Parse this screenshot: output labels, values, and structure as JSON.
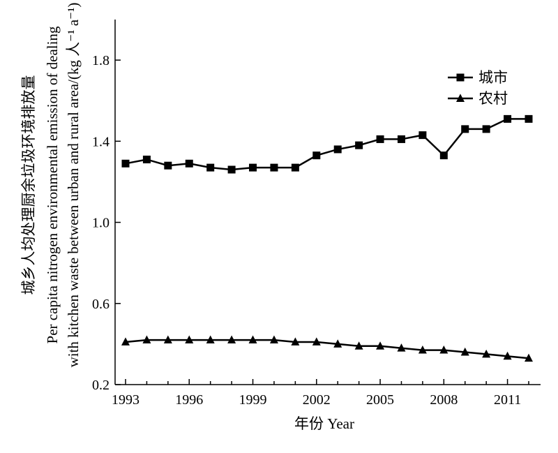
{
  "chart_data": {
    "type": "line",
    "title": "",
    "xlabel": "年份 Year",
    "ylabel_lines": [
      "城乡人均处理厨余垃圾环境排放量",
      "Per capita nitrogen environmental emission of dealing",
      "with kitchen waste between urban and rural area/(kg 人⁻¹ a⁻¹)"
    ],
    "xlim": [
      1993,
      2012
    ],
    "ylim": [
      0.2,
      2.0
    ],
    "x_ticks": [
      1993,
      1996,
      1999,
      2002,
      2005,
      2008,
      2011
    ],
    "y_ticks": [
      0.2,
      0.6,
      1.0,
      1.4,
      1.8
    ],
    "y_tick_labels": [
      "0.2",
      "0.6",
      "1.0",
      "1.4",
      "1.8"
    ],
    "grid": false,
    "legend_position": "top-right",
    "x": [
      1993,
      1994,
      1995,
      1996,
      1997,
      1998,
      1999,
      2000,
      2001,
      2002,
      2003,
      2004,
      2005,
      2006,
      2007,
      2008,
      2009,
      2010,
      2011,
      2012
    ],
    "series": [
      {
        "name": "城市",
        "marker": "square",
        "color": "#000000",
        "values": [
          1.29,
          1.31,
          1.28,
          1.29,
          1.27,
          1.26,
          1.27,
          1.27,
          1.27,
          1.33,
          1.36,
          1.38,
          1.41,
          1.41,
          1.43,
          1.33,
          1.46,
          1.46,
          1.51,
          1.51
        ]
      },
      {
        "name": "农村",
        "marker": "triangle",
        "color": "#000000",
        "values": [
          0.41,
          0.42,
          0.42,
          0.42,
          0.42,
          0.42,
          0.42,
          0.42,
          0.41,
          0.41,
          0.4,
          0.39,
          0.39,
          0.38,
          0.37,
          0.37,
          0.36,
          0.35,
          0.34,
          0.33
        ]
      }
    ]
  }
}
